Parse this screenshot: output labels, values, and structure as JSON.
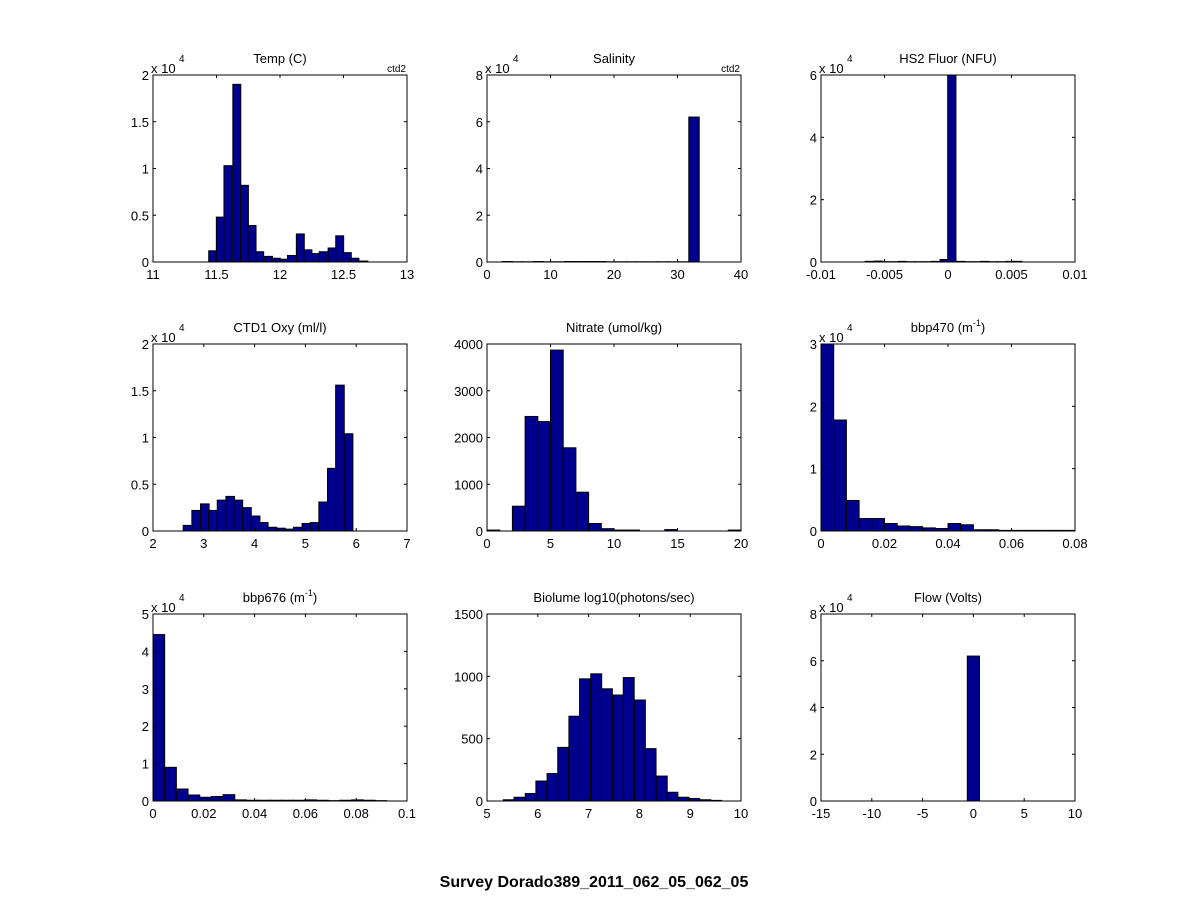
{
  "figure_title": "Survey Dorado389_2011_062_05_062_05",
  "colors": {
    "bar_fill": "#00008f",
    "bar_edge": "#000000",
    "axes": "#000000",
    "background": "#ffffff"
  },
  "chart_data": [
    {
      "type": "bar",
      "title": "Temp (C)",
      "corner_label": "ctd2",
      "exponent_label": "x 10",
      "exponent": "4",
      "xlim": [
        11,
        13
      ],
      "ylim": [
        0,
        2
      ],
      "xticks": [
        11,
        11.5,
        12,
        12.5,
        13
      ],
      "xtick_labels": [
        "11",
        "11.5",
        "12",
        "12.5",
        "13"
      ],
      "yticks": [
        0,
        0.5,
        1,
        1.5,
        2
      ],
      "ytick_labels": [
        "0",
        "0.5",
        "1",
        "1.5",
        "2"
      ],
      "bin_width": 0.0625,
      "bin_centers": [
        11.47,
        11.53,
        11.59,
        11.66,
        11.72,
        11.78,
        11.84,
        11.91,
        11.97,
        12.03,
        12.09,
        12.16,
        12.22,
        12.28,
        12.34,
        12.41,
        12.47,
        12.53,
        12.59,
        12.66
      ],
      "values": [
        0.12,
        0.48,
        1.03,
        1.9,
        0.82,
        0.39,
        0.11,
        0.06,
        0.04,
        0.03,
        0.07,
        0.3,
        0.13,
        0.09,
        0.11,
        0.15,
        0.28,
        0.1,
        0.04,
        0.01
      ]
    },
    {
      "type": "bar",
      "title": "Salinity",
      "corner_label": "ctd2",
      "exponent_label": "x 10",
      "exponent": "4",
      "xlim": [
        0,
        40
      ],
      "ylim": [
        0,
        8
      ],
      "xticks": [
        0,
        10,
        20,
        30,
        40
      ],
      "xtick_labels": [
        "0",
        "10",
        "20",
        "30",
        "40"
      ],
      "yticks": [
        0,
        2,
        4,
        6,
        8
      ],
      "ytick_labels": [
        "0",
        "2",
        "4",
        "6",
        "8"
      ],
      "bin_width": 1.64,
      "bin_centers": [
        3.2,
        4.8,
        6.4,
        8.1,
        9.7,
        11.4,
        13.0,
        14.6,
        16.3,
        17.9,
        19.5,
        21.2,
        22.8,
        24.4,
        26.1,
        27.7,
        29.3,
        31.0,
        32.6
      ],
      "values": [
        0.02,
        0.01,
        0.01,
        0.02,
        0.01,
        0.01,
        0.02,
        0.02,
        0.02,
        0.02,
        0.01,
        0.01,
        0.01,
        0.01,
        0.01,
        0.01,
        0.01,
        0.01,
        6.2
      ]
    },
    {
      "type": "bar",
      "title": "HS2 Fluor (NFU)",
      "corner_label": "",
      "exponent_label": "x 10",
      "exponent": "4",
      "xlim": [
        -0.01,
        0.01
      ],
      "ylim": [
        0,
        6
      ],
      "xticks": [
        -0.01,
        -0.005,
        0,
        0.005,
        0.01
      ],
      "xtick_labels": [
        "-0.01",
        "-0.005",
        "0",
        "0.005",
        "0.01"
      ],
      "yticks": [
        0,
        2,
        4,
        6
      ],
      "ytick_labels": [
        "0",
        "2",
        "4",
        "6"
      ],
      "bin_width": 0.00065,
      "bin_centers": [
        -0.0062,
        -0.0055,
        -0.0049,
        -0.0042,
        -0.0036,
        -0.0029,
        -0.0023,
        -0.0016,
        -0.001,
        -0.0003,
        0.0003,
        0.001,
        0.0016,
        0.0023,
        0.0029,
        0.0036,
        0.0042,
        0.0049,
        0.0055
      ],
      "values": [
        0.02,
        0.03,
        0.01,
        0.01,
        0.02,
        0.01,
        0.01,
        0.01,
        0.02,
        0.08,
        6.0,
        0.02,
        0.01,
        0.01,
        0.02,
        0.01,
        0.01,
        0.02,
        0.02
      ]
    },
    {
      "type": "bar",
      "title": "CTD1 Oxy (ml/l)",
      "corner_label": "",
      "exponent_label": "x 10",
      "exponent": "4",
      "xlim": [
        2,
        7
      ],
      "ylim": [
        0,
        2
      ],
      "xticks": [
        2,
        3,
        4,
        5,
        6,
        7
      ],
      "xtick_labels": [
        "2",
        "3",
        "4",
        "5",
        "6",
        "7"
      ],
      "yticks": [
        0,
        0.5,
        1,
        1.5,
        2
      ],
      "ytick_labels": [
        "0",
        "0.5",
        "1",
        "1.5",
        "2"
      ],
      "bin_width": 0.17,
      "bin_centers": [
        2.68,
        2.85,
        3.02,
        3.18,
        3.35,
        3.52,
        3.68,
        3.85,
        4.02,
        4.18,
        4.35,
        4.52,
        4.68,
        4.85,
        5.02,
        5.18,
        5.35,
        5.52,
        5.68,
        5.85,
        6.02
      ],
      "values": [
        0.06,
        0.22,
        0.29,
        0.22,
        0.33,
        0.37,
        0.33,
        0.25,
        0.16,
        0.09,
        0.04,
        0.03,
        0.02,
        0.04,
        0.08,
        0.09,
        0.31,
        0.67,
        1.56,
        1.04,
        0.0
      ]
    },
    {
      "type": "bar",
      "title": "Nitrate (umol/kg)",
      "corner_label": "",
      "exponent_label": "",
      "exponent": "",
      "xlim": [
        0,
        20
      ],
      "ylim": [
        0,
        4000
      ],
      "xticks": [
        0,
        5,
        10,
        15,
        20
      ],
      "xtick_labels": [
        "0",
        "5",
        "10",
        "15",
        "20"
      ],
      "yticks": [
        0,
        1000,
        2000,
        3000,
        4000
      ],
      "ytick_labels": [
        "0",
        "1000",
        "2000",
        "3000",
        "4000"
      ],
      "bin_width": 1.0,
      "bin_centers": [
        0.5,
        1.5,
        2.5,
        3.5,
        4.5,
        5.5,
        6.5,
        7.5,
        8.5,
        9.5,
        10.5,
        11.5,
        12.5,
        13.5,
        14.5,
        15.5,
        16.5,
        17.5,
        18.5,
        19.5
      ],
      "values": [
        20,
        0,
        530,
        2450,
        2340,
        3870,
        1780,
        830,
        160,
        50,
        20,
        20,
        0,
        0,
        30,
        0,
        0,
        0,
        0,
        20
      ]
    },
    {
      "type": "bar",
      "title": "bbp470 (m",
      "title_superscript": "-1",
      "title_suffix": ")",
      "corner_label": "",
      "exponent_label": "x 10",
      "exponent": "4",
      "xlim": [
        0,
        0.08
      ],
      "ylim": [
        0,
        3
      ],
      "xticks": [
        0,
        0.02,
        0.04,
        0.06,
        0.08
      ],
      "xtick_labels": [
        "0",
        "0.02",
        "0.04",
        "0.06",
        "0.08"
      ],
      "yticks": [
        0,
        1,
        2,
        3
      ],
      "ytick_labels": [
        "0",
        "1",
        "2",
        "3"
      ],
      "bin_width": 0.004,
      "bin_centers": [
        0.002,
        0.006,
        0.01,
        0.014,
        0.018,
        0.022,
        0.026,
        0.03,
        0.034,
        0.038,
        0.042,
        0.046,
        0.05,
        0.054,
        0.058,
        0.062,
        0.066,
        0.07,
        0.074,
        0.078
      ],
      "values": [
        3.0,
        1.78,
        0.49,
        0.2,
        0.2,
        0.12,
        0.08,
        0.07,
        0.05,
        0.04,
        0.12,
        0.1,
        0.02,
        0.02,
        0.01,
        0.01,
        0.01,
        0.01,
        0.01,
        0.01
      ]
    },
    {
      "type": "bar",
      "title": "bbp676 (m",
      "title_superscript": "-1",
      "title_suffix": ")",
      "corner_label": "",
      "exponent_label": "x 10",
      "exponent": "4",
      "xlim": [
        0,
        0.1
      ],
      "ylim": [
        0,
        5
      ],
      "xticks": [
        0,
        0.02,
        0.04,
        0.06,
        0.08,
        0.1
      ],
      "xtick_labels": [
        "0",
        "0.02",
        "0.04",
        "0.06",
        "0.08",
        "0.1"
      ],
      "yticks": [
        0,
        1,
        2,
        3,
        4,
        5
      ],
      "ytick_labels": [
        "0",
        "1",
        "2",
        "3",
        "4",
        "5"
      ],
      "bin_width": 0.0046,
      "bin_centers": [
        0.0023,
        0.0069,
        0.0115,
        0.0161,
        0.0207,
        0.0253,
        0.0299,
        0.0345,
        0.0391,
        0.0437,
        0.0483,
        0.0529,
        0.0575,
        0.0621,
        0.0667,
        0.0713,
        0.0759,
        0.0805,
        0.0851,
        0.0897
      ],
      "values": [
        4.45,
        0.9,
        0.32,
        0.16,
        0.1,
        0.12,
        0.17,
        0.03,
        0.02,
        0.02,
        0.02,
        0.02,
        0.02,
        0.03,
        0.02,
        0.01,
        0.02,
        0.03,
        0.02,
        0.01
      ]
    },
    {
      "type": "bar",
      "title": "Biolume log10(photons/sec)",
      "corner_label": "",
      "exponent_label": "",
      "exponent": "",
      "xlim": [
        5,
        10
      ],
      "ylim": [
        0,
        1500
      ],
      "xticks": [
        5,
        6,
        7,
        8,
        9,
        10
      ],
      "xtick_labels": [
        "5",
        "6",
        "7",
        "8",
        "9",
        "10"
      ],
      "yticks": [
        0,
        500,
        1000,
        1500
      ],
      "ytick_labels": [
        "0",
        "500",
        "1000",
        "1500"
      ],
      "bin_width": 0.215,
      "bin_centers": [
        5.43,
        5.64,
        5.86,
        6.07,
        6.29,
        6.5,
        6.72,
        6.93,
        7.15,
        7.36,
        7.58,
        7.79,
        8.01,
        8.22,
        8.44,
        8.65,
        8.87,
        9.08,
        9.3,
        9.51
      ],
      "values": [
        10,
        30,
        60,
        160,
        220,
        430,
        680,
        980,
        1020,
        900,
        850,
        990,
        810,
        420,
        200,
        70,
        30,
        20,
        10,
        5
      ]
    },
    {
      "type": "bar",
      "title": "Flow (Volts)",
      "corner_label": "",
      "exponent_label": "x 10",
      "exponent": "4",
      "xlim": [
        -15,
        10
      ],
      "ylim": [
        0,
        8
      ],
      "xticks": [
        -15,
        -10,
        -5,
        0,
        5,
        10
      ],
      "xtick_labels": [
        "-15",
        "-10",
        "-5",
        "0",
        "5",
        "10"
      ],
      "yticks": [
        0,
        2,
        4,
        6,
        8
      ],
      "ytick_labels": [
        "0",
        "2",
        "4",
        "6",
        "8"
      ],
      "bin_width": 1.2,
      "bin_centers": [
        0.0
      ],
      "values": [
        6.2
      ]
    }
  ]
}
